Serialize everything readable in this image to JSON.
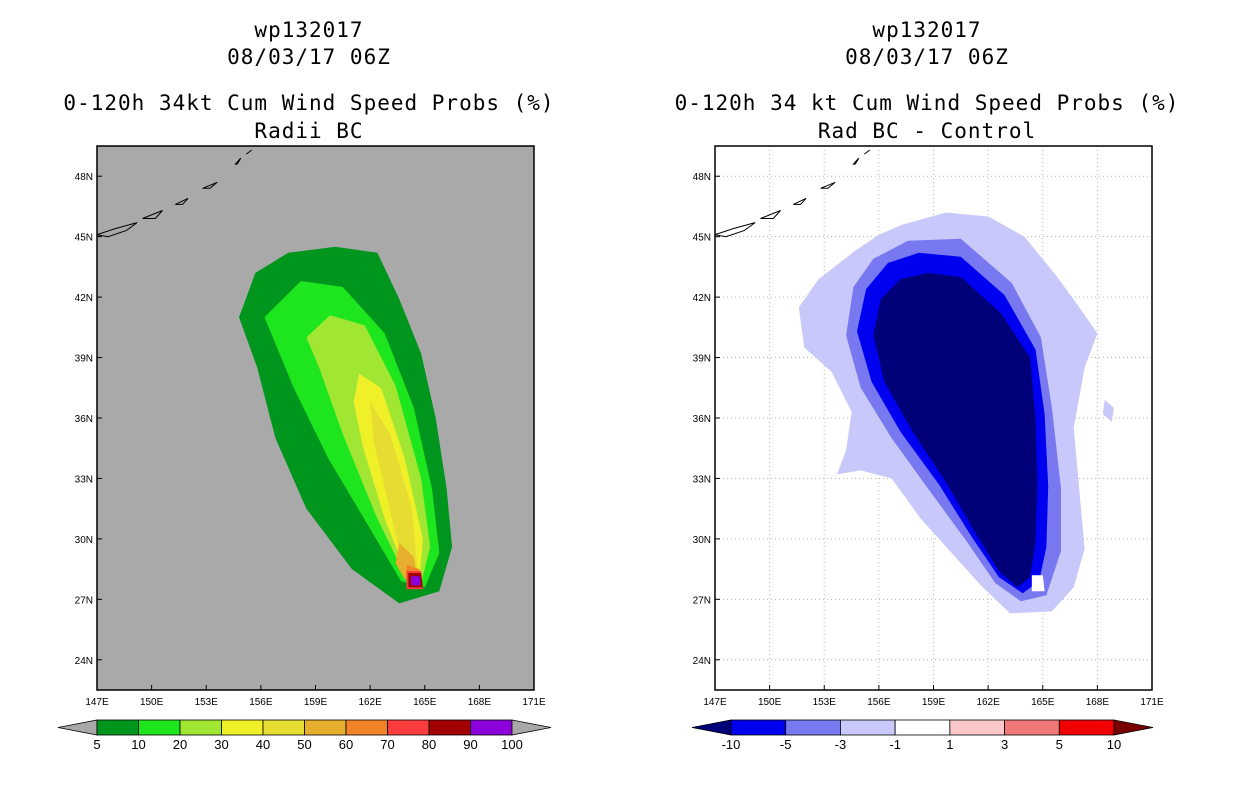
{
  "chart_data": [
    {
      "type": "filled-contour-map",
      "storm_id": "wp132017",
      "datetime": "08/03/17 06Z",
      "title": "0-120h 34kt Cum Wind Speed Probs (%)",
      "subtitle": "Radii BC",
      "x_ticks": [
        "147E",
        "150E",
        "153E",
        "156E",
        "159E",
        "162E",
        "165E",
        "168E",
        "171E"
      ],
      "y_ticks": [
        "48N",
        "45N",
        "42N",
        "39N",
        "36N",
        "33N",
        "30N",
        "27N",
        "24N"
      ],
      "xlim": [
        147,
        171
      ],
      "ylim": [
        22.5,
        49.5
      ],
      "background": "#a9a9a9",
      "grid": false,
      "colorbar": {
        "labels": [
          "5",
          "10",
          "20",
          "30",
          "40",
          "50",
          "60",
          "70",
          "80",
          "90",
          "100"
        ],
        "colors": [
          "#00961e",
          "#1ee61e",
          "#a0e632",
          "#f0f028",
          "#e6dc32",
          "#e6af2d",
          "#f08228",
          "#fa3c3c",
          "#a00000",
          "#8c00dc"
        ],
        "under_color": "#a9a9a9",
        "over_color": "#a9a9a9"
      },
      "contours": [
        {
          "level": "5-10",
          "color": "#00961e",
          "pts": [
            [
              160.1,
              44.5
            ],
            [
              162.4,
              44.2
            ],
            [
              163.6,
              41.9
            ],
            [
              164.8,
              39.2
            ],
            [
              165.6,
              36.0
            ],
            [
              166.2,
              32.5
            ],
            [
              166.5,
              29.6
            ],
            [
              165.8,
              27.4
            ],
            [
              163.6,
              26.8
            ],
            [
              161.0,
              28.5
            ],
            [
              158.5,
              31.5
            ],
            [
              156.8,
              35.0
            ],
            [
              155.8,
              38.5
            ],
            [
              154.8,
              41.0
            ],
            [
              155.7,
              43.2
            ],
            [
              157.5,
              44.2
            ]
          ]
        },
        {
          "level": "10-20",
          "color": "#1ee61e",
          "pts": [
            [
              158.2,
              42.8
            ],
            [
              160.5,
              42.5
            ],
            [
              162.8,
              40.2
            ],
            [
              164.4,
              36.5
            ],
            [
              165.4,
              32.5
            ],
            [
              165.8,
              29.3
            ],
            [
              165.0,
              27.6
            ],
            [
              163.7,
              27.9
            ],
            [
              162.0,
              30.5
            ],
            [
              159.7,
              34.0
            ],
            [
              157.8,
              37.5
            ],
            [
              156.2,
              41.0
            ]
          ]
        },
        {
          "level": "20-30",
          "color": "#a0e632",
          "pts": [
            [
              159.8,
              41.1
            ],
            [
              161.7,
              40.6
            ],
            [
              163.4,
              37.6
            ],
            [
              164.8,
              33.0
            ],
            [
              165.3,
              29.6
            ],
            [
              164.8,
              27.8
            ],
            [
              163.9,
              28.2
            ],
            [
              162.3,
              31.2
            ],
            [
              160.5,
              35.2
            ],
            [
              159.2,
              38.5
            ],
            [
              158.5,
              40.0
            ]
          ]
        },
        {
          "level": "30-40",
          "color": "#f0f028",
          "pts": [
            [
              161.4,
              38.2
            ],
            [
              162.6,
              37.5
            ],
            [
              163.9,
              34.0
            ],
            [
              164.9,
              30.0
            ],
            [
              164.7,
              27.9
            ],
            [
              163.9,
              28.5
            ],
            [
              162.8,
              31.0
            ],
            [
              161.6,
              34.6
            ],
            [
              161.1,
              36.8
            ]
          ]
        },
        {
          "level": "40-50",
          "color": "#e6dc32",
          "pts": [
            [
              162.0,
              36.8
            ],
            [
              163.1,
              35.2
            ],
            [
              164.3,
              31.5
            ],
            [
              164.6,
              28.4
            ],
            [
              163.8,
              28.6
            ],
            [
              163.0,
              31.8
            ],
            [
              162.2,
              34.8
            ]
          ]
        },
        {
          "level": "50-60",
          "color": "#e6af2d",
          "pts": [
            [
              163.6,
              29.8
            ],
            [
              164.4,
              29.1
            ],
            [
              164.6,
              28.0
            ],
            [
              163.9,
              28.0
            ],
            [
              163.4,
              28.8
            ]
          ]
        },
        {
          "level": "60-70",
          "color": "#f08228",
          "pts": [
            [
              164.0,
              28.7
            ],
            [
              164.7,
              28.5
            ],
            [
              164.8,
              27.6
            ],
            [
              164.0,
              27.6
            ]
          ]
        },
        {
          "level": "70-80",
          "color": "#fa3c3c",
          "pts": [
            [
              164.0,
              28.4
            ],
            [
              164.8,
              28.4
            ],
            [
              164.9,
              27.5
            ],
            [
              164.0,
              27.5
            ]
          ]
        },
        {
          "level": "80-90",
          "color": "#a00000",
          "pts": [
            [
              164.1,
              28.3
            ],
            [
              164.8,
              28.3
            ],
            [
              164.9,
              27.6
            ],
            [
              164.1,
              27.6
            ]
          ]
        },
        {
          "level": "90-100",
          "color": "#8c00dc",
          "pts": [
            [
              164.25,
              28.15
            ],
            [
              164.75,
              28.15
            ],
            [
              164.75,
              27.7
            ],
            [
              164.25,
              27.7
            ]
          ]
        }
      ]
    },
    {
      "type": "filled-contour-map",
      "storm_id": "wp132017",
      "datetime": "08/03/17 06Z",
      "title": "0-120h 34 kt Cum Wind Speed Probs (%)",
      "subtitle": "Rad BC - Control",
      "x_ticks": [
        "147E",
        "150E",
        "153E",
        "156E",
        "159E",
        "162E",
        "165E",
        "168E",
        "171E"
      ],
      "y_ticks": [
        "48N",
        "45N",
        "42N",
        "39N",
        "36N",
        "33N",
        "30N",
        "27N",
        "24N"
      ],
      "xlim": [
        147,
        171
      ],
      "ylim": [
        22.5,
        49.5
      ],
      "background": "#ffffff",
      "grid": true,
      "colorbar": {
        "labels": [
          "-10",
          "-5",
          "-3",
          "-1",
          "1",
          "3",
          "5",
          "10"
        ],
        "colors": [
          "#0000f0",
          "#7878f0",
          "#c8c8fa",
          "#ffffff",
          "#fac8c8",
          "#f07878",
          "#f00000"
        ],
        "under_color": "#000078",
        "over_color": "#780000"
      },
      "contours": [
        {
          "level": "-3 to -1",
          "color": "#c8c8fa",
          "pts": [
            [
              156.0,
              45.1
            ],
            [
              157.3,
              45.6
            ],
            [
              159.7,
              46.2
            ],
            [
              162.0,
              46.0
            ],
            [
              164.0,
              45.0
            ],
            [
              165.8,
              43.0
            ],
            [
              167.0,
              41.5
            ],
            [
              168.0,
              40.2
            ],
            [
              167.3,
              38.5
            ],
            [
              166.7,
              35.5
            ],
            [
              167.0,
              32.5
            ],
            [
              167.3,
              29.5
            ],
            [
              166.7,
              27.6
            ],
            [
              165.5,
              26.4
            ],
            [
              163.2,
              26.3
            ],
            [
              161.6,
              27.7
            ],
            [
              160.0,
              29.3
            ],
            [
              158.3,
              31.0
            ],
            [
              156.7,
              33.0
            ],
            [
              155.0,
              33.4
            ],
            [
              153.7,
              33.2
            ],
            [
              154.2,
              34.4
            ],
            [
              154.5,
              36.3
            ],
            [
              153.4,
              38.3
            ],
            [
              151.9,
              39.5
            ],
            [
              151.6,
              41.5
            ],
            [
              152.7,
              42.9
            ],
            [
              154.7,
              44.3
            ]
          ]
        },
        {
          "level": "-3 to -1",
          "color": "#c8c8fa",
          "pts": [
            [
              168.4,
              36.9
            ],
            [
              168.9,
              36.5
            ],
            [
              168.8,
              35.8
            ],
            [
              168.3,
              36.2
            ]
          ]
        },
        {
          "level": "-5 to -3",
          "color": "#7878f0",
          "pts": [
            [
              157.6,
              44.8
            ],
            [
              160.5,
              44.9
            ],
            [
              163.3,
              42.7
            ],
            [
              164.9,
              40.0
            ],
            [
              165.5,
              36.5
            ],
            [
              166.0,
              32.5
            ],
            [
              166.0,
              29.4
            ],
            [
              165.2,
              27.2
            ],
            [
              163.8,
              26.9
            ],
            [
              162.4,
              27.8
            ],
            [
              160.8,
              29.9
            ],
            [
              158.7,
              32.5
            ],
            [
              156.7,
              35.0
            ],
            [
              155.0,
              37.5
            ],
            [
              154.2,
              40.1
            ],
            [
              154.6,
              42.5
            ],
            [
              155.7,
              43.9
            ]
          ]
        },
        {
          "level": "-10 to -5",
          "color": "#0000f0",
          "pts": [
            [
              158.2,
              44.2
            ],
            [
              160.5,
              44.0
            ],
            [
              162.9,
              42.1
            ],
            [
              164.6,
              39.4
            ],
            [
              165.1,
              36.2
            ],
            [
              165.3,
              32.6
            ],
            [
              165.2,
              29.6
            ],
            [
              164.8,
              27.9
            ],
            [
              163.9,
              27.3
            ],
            [
              162.6,
              28.1
            ],
            [
              161.1,
              30.1
            ],
            [
              159.3,
              32.7
            ],
            [
              157.2,
              35.3
            ],
            [
              155.6,
              37.8
            ],
            [
              154.8,
              40.3
            ],
            [
              155.3,
              42.4
            ],
            [
              156.5,
              43.7
            ]
          ]
        },
        {
          "level": "< -10",
          "color": "#000078",
          "pts": [
            [
              158.7,
              43.2
            ],
            [
              160.5,
              43.0
            ],
            [
              162.7,
              41.2
            ],
            [
              164.3,
              39.0
            ],
            [
              164.6,
              36.0
            ],
            [
              164.7,
              32.8
            ],
            [
              164.6,
              29.8
            ],
            [
              164.3,
              28.1
            ],
            [
              163.6,
              27.6
            ],
            [
              162.6,
              28.4
            ],
            [
              161.3,
              30.3
            ],
            [
              159.7,
              32.8
            ],
            [
              157.8,
              35.4
            ],
            [
              156.3,
              37.8
            ],
            [
              155.7,
              40.1
            ],
            [
              156.1,
              41.9
            ],
            [
              157.2,
              42.9
            ]
          ]
        },
        {
          "level": "-1 to 1",
          "color": "#ffffff",
          "pts": [
            [
              164.4,
              28.2
            ],
            [
              165.0,
              28.2
            ],
            [
              165.1,
              27.4
            ],
            [
              164.4,
              27.4
            ]
          ]
        }
      ]
    }
  ]
}
